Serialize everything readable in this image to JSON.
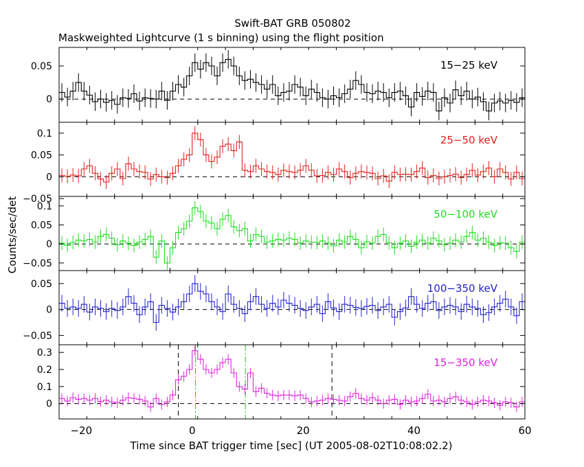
{
  "chart_data": {
    "type": "line",
    "title": "Swift-BAT GRB 050802",
    "subtitle": "Maskweighted Lightcurve (1 s binning) using the flight position",
    "xlabel": "Time since BAT trigger time [sec] (UT 2005-08-02T10:08:02.2)",
    "ylabel": "Counts/sec/det",
    "xlim": [
      -24,
      60
    ],
    "xticks": [
      -20,
      0,
      20,
      40,
      60
    ],
    "xtick_labels": [
      "−20",
      "0",
      "20",
      "40",
      "60"
    ],
    "markers": {
      "black_dashed": [
        -2.5,
        25.2
      ],
      "green_dashdot": [
        0.6,
        9.6
      ]
    },
    "panels": [
      {
        "band": "15−25 keV",
        "color": "#000000",
        "ylim": [
          -0.035,
          0.078
        ],
        "yticks": [
          0,
          0.05
        ],
        "ytick_labels": [
          "0",
          "0.05"
        ],
        "err": 0.014,
        "x": [
          -24,
          -23,
          -22,
          -21,
          -20,
          -19,
          -18,
          -17,
          -16,
          -15,
          -14,
          -13,
          -12,
          -11,
          -10,
          -9,
          -8,
          -7,
          -6,
          -5,
          -4,
          -3,
          -2,
          -1,
          0,
          1,
          2,
          3,
          4,
          5,
          6,
          7,
          8,
          9,
          10,
          11,
          12,
          13,
          14,
          15,
          16,
          17,
          18,
          19,
          20,
          21,
          22,
          23,
          24,
          25,
          26,
          27,
          28,
          29,
          30,
          31,
          32,
          33,
          34,
          35,
          36,
          37,
          38,
          39,
          40,
          41,
          42,
          43,
          44,
          45,
          46,
          47,
          48,
          49,
          50,
          51,
          52,
          53,
          54,
          55,
          56,
          57,
          58,
          59
        ],
        "values": [
          0.01,
          0.003,
          0.012,
          0.025,
          0.012,
          0.006,
          -0.004,
          0,
          -0.005,
          -0.002,
          -0.008,
          0.002,
          0.001,
          0.008,
          -0.003,
          0.002,
          0.001,
          0,
          0.012,
          -0.002,
          0.012,
          0.022,
          0.018,
          0.035,
          0.055,
          0.045,
          0.055,
          0.05,
          0.035,
          0.055,
          0.06,
          0.05,
          0.035,
          0.028,
          0.03,
          0.025,
          0.022,
          0.015,
          0.022,
          0.005,
          0.01,
          0.012,
          0.022,
          0.018,
          0.005,
          0.015,
          0.01,
          0.002,
          0,
          0.005,
          0.002,
          0.008,
          0.015,
          0.028,
          0.022,
          0.01,
          0.008,
          0.012,
          0.01,
          0.002,
          0.01,
          0.012,
          0.005,
          -0.012,
          0.01,
          0.004,
          0.012,
          0.01,
          -0.018,
          0.002,
          -0.006,
          0.014,
          0.005,
          0.012,
          0,
          0.003,
          -0.004,
          -0.018,
          -0.006,
          -0.003,
          -0.006,
          -0.002,
          -0.005,
          0.002
        ]
      },
      {
        "band": "25−50 keV",
        "color": "#e0201c",
        "ylim": [
          -0.045,
          0.125
        ],
        "yticks": [
          -0.05,
          0,
          0.05,
          0.1
        ],
        "ytick_labels": [
          "−0.05",
          "0",
          "0.05",
          "0.1"
        ],
        "err": 0.016,
        "x": [
          -24,
          -23,
          -22,
          -21,
          -20,
          -19,
          -18,
          -17,
          -16,
          -15,
          -14,
          -13,
          -12,
          -11,
          -10,
          -9,
          -8,
          -7,
          -6,
          -5,
          -4,
          -3,
          -2,
          -1,
          0,
          1,
          2,
          3,
          4,
          5,
          6,
          7,
          8,
          9,
          10,
          11,
          12,
          13,
          14,
          15,
          16,
          17,
          18,
          19,
          20,
          21,
          22,
          23,
          24,
          25,
          26,
          27,
          28,
          29,
          30,
          31,
          32,
          33,
          34,
          35,
          36,
          37,
          38,
          39,
          40,
          41,
          42,
          43,
          44,
          45,
          46,
          47,
          48,
          49,
          50,
          51,
          52,
          53,
          54,
          55,
          56,
          57,
          58,
          59
        ],
        "values": [
          0.003,
          0.001,
          0.004,
          0.002,
          0.018,
          0.025,
          0.008,
          -0.005,
          -0.012,
          0.008,
          0.018,
          -0.004,
          0.03,
          0.018,
          0.012,
          0.01,
          -0.005,
          0.005,
          0,
          -0.002,
          0.008,
          0.025,
          0.04,
          0.05,
          0.1,
          0.085,
          0.05,
          0.035,
          0.045,
          0.07,
          0.075,
          0.06,
          0.08,
          0.015,
          0.012,
          0.025,
          0.018,
          0.012,
          0.01,
          0.005,
          0.015,
          0.012,
          0.01,
          0.015,
          0.025,
          0.015,
          0.002,
          0.003,
          0.01,
          0.005,
          0.018,
          0.012,
          -0.002,
          0.008,
          0.012,
          0.01,
          0.008,
          -0.004,
          0.002,
          -0.01,
          0.01,
          0.005,
          0.006,
          0.005,
          0.012,
          0.02,
          -0.002,
          0.003,
          -0.004,
          0,
          0.003,
          0.006,
          -0.002,
          0.005,
          0.015,
          0.004,
          0.012,
          0.02,
          0,
          0.018,
          0.01,
          -0.005,
          0.01,
          -0.004
        ]
      },
      {
        "band": "50−100 keV",
        "color": "#22dd22",
        "ylim": [
          -0.07,
          0.125
        ],
        "yticks": [
          -0.05,
          0,
          0.05,
          0.1
        ],
        "ytick_labels": [
          "−0.05",
          "0",
          "0.05",
          "0.1"
        ],
        "err": 0.018,
        "x": [
          -24,
          -23,
          -22,
          -21,
          -20,
          -19,
          -18,
          -17,
          -16,
          -15,
          -14,
          -13,
          -12,
          -11,
          -10,
          -9,
          -8,
          -7,
          -6,
          -5,
          -4,
          -3,
          -2,
          -1,
          0,
          1,
          2,
          3,
          4,
          5,
          6,
          7,
          8,
          9,
          10,
          11,
          12,
          13,
          14,
          15,
          16,
          17,
          18,
          19,
          20,
          21,
          22,
          23,
          24,
          25,
          26,
          27,
          28,
          29,
          30,
          31,
          32,
          33,
          34,
          35,
          36,
          37,
          38,
          39,
          40,
          41,
          42,
          43,
          44,
          45,
          46,
          47,
          48,
          49,
          50,
          51,
          52,
          53,
          54,
          55,
          56,
          57,
          58,
          59
        ],
        "values": [
          0.002,
          -0.004,
          0.004,
          0.01,
          0.008,
          0.012,
          0.005,
          0.02,
          0.025,
          0.015,
          -0.002,
          0.008,
          0.002,
          -0.004,
          0.005,
          0.012,
          0.02,
          -0.035,
          0.008,
          -0.05,
          -0.01,
          0.03,
          0.04,
          0.06,
          0.095,
          0.085,
          0.06,
          0.055,
          0.04,
          0.065,
          0.075,
          0.045,
          0.035,
          0.04,
          0.008,
          0.025,
          0.02,
          0.005,
          0.008,
          0.012,
          0.01,
          0.015,
          0.012,
          0.002,
          0.008,
          0.005,
          0.004,
          0.008,
          0.002,
          -0.005,
          0.01,
          0.005,
          0.02,
          0.012,
          -0.01,
          0.006,
          0.002,
          0.02,
          0.025,
          0.003,
          -0.01,
          0.002,
          0.008,
          -0.006,
          0.005,
          0.01,
          0.002,
          0.015,
          0.008,
          -0.002,
          0.002,
          0.01,
          0.005,
          0.02,
          0.03,
          0.01,
          0.015,
          0.005,
          -0.004,
          0.003,
          0.002,
          -0.01,
          -0.02,
          0.005
        ]
      },
      {
        "band": "100−350 keV",
        "color": "#2222cc",
        "ylim": [
          -0.068,
          0.075
        ],
        "yticks": [
          -0.05,
          0,
          0.05
        ],
        "ytick_labels": [
          "−0.05",
          "0",
          "0.05"
        ],
        "err": 0.016,
        "x": [
          -24,
          -23,
          -22,
          -21,
          -20,
          -19,
          -18,
          -17,
          -16,
          -15,
          -14,
          -13,
          -12,
          -11,
          -10,
          -9,
          -8,
          -7,
          -6,
          -5,
          -4,
          -3,
          -2,
          -1,
          0,
          1,
          2,
          3,
          4,
          5,
          6,
          7,
          8,
          9,
          10,
          11,
          12,
          13,
          14,
          15,
          16,
          17,
          18,
          19,
          20,
          21,
          22,
          23,
          24,
          25,
          26,
          27,
          28,
          29,
          30,
          31,
          32,
          33,
          34,
          35,
          36,
          37,
          38,
          39,
          40,
          41,
          42,
          43,
          44,
          45,
          46,
          47,
          48,
          49,
          50,
          51,
          52,
          53,
          54,
          55,
          56,
          57,
          58,
          59
        ],
        "values": [
          0.012,
          0.002,
          0.005,
          0.002,
          0.01,
          -0.005,
          0.005,
          0.002,
          -0.004,
          0.002,
          -0.002,
          0.005,
          0.025,
          0.012,
          -0.01,
          0.005,
          0.015,
          -0.025,
          0.008,
          0.002,
          -0.005,
          0.005,
          0.015,
          0.03,
          0.05,
          0.035,
          0.03,
          0.015,
          0.005,
          -0.004,
          0.03,
          0.01,
          0.002,
          -0.008,
          0.015,
          0.025,
          0.01,
          0.002,
          0.012,
          0.005,
          0.018,
          0.012,
          0.008,
          0.002,
          -0.002,
          0.005,
          0.01,
          -0.008,
          0.015,
          0.003,
          -0.004,
          0.01,
          0.008,
          0.004,
          0.002,
          0.006,
          0.008,
          -0.002,
          0.005,
          0.01,
          -0.015,
          -0.004,
          0.003,
          0.025,
          0.01,
          0.002,
          0.012,
          0.015,
          -0.002,
          0.005,
          0.008,
          0.005,
          -0.004,
          0.01,
          0.005,
          0.002,
          -0.01,
          -0.006,
          0.005,
          0.012,
          0.02,
          0.005,
          -0.012,
          0.015
        ]
      },
      {
        "band": "15−350 keV",
        "color": "#dd22dd",
        "ylim": [
          -0.09,
          0.345
        ],
        "yticks": [
          0,
          0.1,
          0.2,
          0.3
        ],
        "ytick_labels": [
          "0",
          "0.1",
          "0.2",
          "0.3"
        ],
        "err": 0.03,
        "x": [
          -24,
          -23,
          -22,
          -21,
          -20,
          -19,
          -18,
          -17,
          -16,
          -15,
          -14,
          -13,
          -12,
          -11,
          -10,
          -9,
          -8,
          -7,
          -6,
          -5,
          -4,
          -3,
          -2,
          -1,
          0,
          1,
          2,
          3,
          4,
          5,
          6,
          7,
          8,
          9,
          10,
          11,
          12,
          13,
          14,
          15,
          16,
          17,
          18,
          19,
          20,
          21,
          22,
          23,
          24,
          25,
          26,
          27,
          28,
          29,
          30,
          31,
          32,
          33,
          34,
          35,
          36,
          37,
          38,
          39,
          40,
          41,
          42,
          43,
          44,
          45,
          46,
          47,
          48,
          49,
          50,
          51,
          52,
          53,
          54,
          55,
          56,
          57,
          58,
          59
        ],
        "values": [
          0.03,
          0.015,
          0.035,
          0.025,
          0.03,
          0.02,
          0.03,
          0.012,
          0.02,
          0.01,
          0.005,
          0.02,
          0.035,
          0.03,
          0.025,
          0.015,
          -0.02,
          0.03,
          -0.005,
          0.01,
          0.05,
          0.14,
          0.16,
          0.2,
          0.31,
          0.26,
          0.2,
          0.18,
          0.2,
          0.24,
          0.26,
          0.18,
          0.1,
          0.085,
          0.18,
          0.07,
          0.09,
          0.06,
          0.05,
          0.045,
          0.05,
          0.05,
          0.045,
          0.05,
          0.03,
          0.01,
          0.015,
          0.02,
          0.03,
          0.025,
          0.02,
          0.015,
          0.04,
          0.06,
          0.03,
          0.02,
          0.035,
          0.02,
          0,
          0.02,
          0.025,
          -0.005,
          0.02,
          0.01,
          0.015,
          0.03,
          0.055,
          0.015,
          0.02,
          0.01,
          0.03,
          0.04,
          0.02,
          0.01,
          -0.005,
          0.01,
          0.02,
          0.015,
          0.005,
          -0.01,
          0.01,
          0.005,
          -0.02,
          0.01
        ]
      }
    ]
  }
}
